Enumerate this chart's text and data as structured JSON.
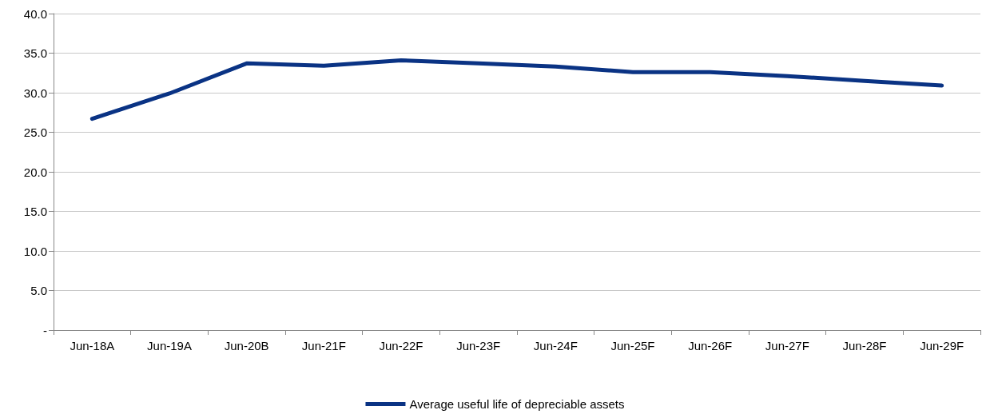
{
  "chart_data": {
    "type": "line",
    "categories": [
      "Jun-18A",
      "Jun-19A",
      "Jun-20B",
      "Jun-21F",
      "Jun-22F",
      "Jun-23F",
      "Jun-24F",
      "Jun-25F",
      "Jun-26F",
      "Jun-27F",
      "Jun-28F",
      "Jun-29F"
    ],
    "series": [
      {
        "name": "Average useful life of depreciable assets",
        "color": "#0a3384",
        "values": [
          26.7,
          29.9,
          33.7,
          33.4,
          34.1,
          33.7,
          33.3,
          32.6,
          32.6,
          32.1,
          31.5,
          30.9
        ]
      }
    ],
    "ylim": [
      0,
      40
    ],
    "yticks": [
      {
        "value": 0,
        "label": "-"
      },
      {
        "value": 5,
        "label": "5.0"
      },
      {
        "value": 10,
        "label": "10.0"
      },
      {
        "value": 15,
        "label": "15.0"
      },
      {
        "value": 20,
        "label": "20.0"
      },
      {
        "value": 25,
        "label": "25.0"
      },
      {
        "value": 30,
        "label": "30.0"
      },
      {
        "value": 35,
        "label": "35.0"
      },
      {
        "value": 40,
        "label": "40.0"
      }
    ],
    "grid": "y",
    "legend": "bottom",
    "marker": "none",
    "line_style": "solid"
  }
}
